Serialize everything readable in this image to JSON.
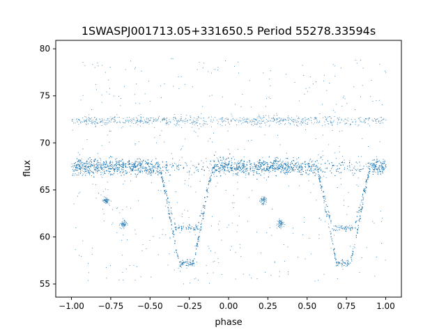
{
  "chart_data": {
    "type": "scatter",
    "title": "1SWASPJ001713.05+331650.5 Period 55278.33594s",
    "xlabel": "phase",
    "ylabel": "flux",
    "xlim": [
      -1.1,
      1.1
    ],
    "ylim": [
      53.6,
      80.9
    ],
    "xticks": [
      -1.0,
      -0.75,
      -0.5,
      -0.25,
      0.0,
      0.25,
      0.5,
      0.75,
      1.0
    ],
    "xtick_labels": [
      "−1.00",
      "−0.75",
      "−0.50",
      "−0.25",
      "0.00",
      "0.25",
      "0.50",
      "0.75",
      "1.00"
    ],
    "yticks": [
      55,
      60,
      65,
      70,
      75,
      80
    ],
    "ytick_labels": [
      "55",
      "60",
      "65",
      "70",
      "75",
      "80"
    ],
    "grid": false,
    "marker_color": "#1f77b4",
    "series": [
      {
        "description_of_shape": "dense baseline near flux 67.5 across phase -1 to 1",
        "baseline_flux": 67.5,
        "baseline_spread": 0.6,
        "upper_band_flux": 72.4,
        "eclipses": [
          {
            "center_phase": -0.27,
            "half_width_top": 0.17,
            "half_width_bottom": 0.045,
            "min_flux": 57.2,
            "shoulder_flux": 61.0
          },
          {
            "center_phase": 0.73,
            "half_width_top": 0.17,
            "half_width_bottom": 0.045,
            "min_flux": 57.2,
            "shoulder_flux": 61.0
          }
        ],
        "secondary_clumps": [
          {
            "phase": -0.78,
            "flux": 63.9
          },
          {
            "phase": -0.67,
            "flux": 61.4
          },
          {
            "phase": 0.22,
            "flux": 63.9
          },
          {
            "phase": 0.33,
            "flux": 61.4
          }
        ]
      }
    ]
  }
}
